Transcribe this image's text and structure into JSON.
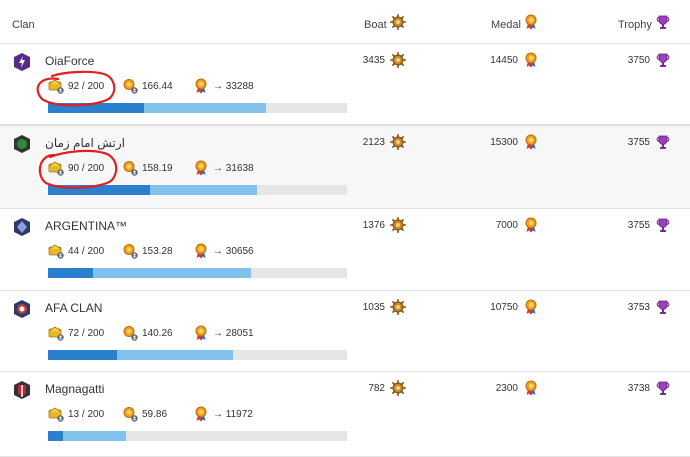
{
  "header": {
    "clan_label": "Clan",
    "boat_label": "Boat",
    "medal_label": "Medal",
    "trophy_label": "Trophy"
  },
  "rows": [
    {
      "name": "OiaForce",
      "members": "92 / 200",
      "avg": "166.44",
      "total": "→ 33288",
      "boat": "3435",
      "medal": "14450",
      "trophy": "3750",
      "bar": [
        0.32,
        0.73
      ],
      "badge_color": "#5b2a86"
    },
    {
      "name": "ارتش امام زمان",
      "members": "90 / 200",
      "avg": "158.19",
      "total": "→ 31638",
      "boat": "2123",
      "medal": "15300",
      "trophy": "3755",
      "bar": [
        0.34,
        0.7
      ],
      "badge_color": "#2e8b3a"
    },
    {
      "name": "ARGENTINA™",
      "members": "44 / 200",
      "avg": "153.28",
      "total": "→ 30656",
      "boat": "1376",
      "medal": "7000",
      "trophy": "3755",
      "bar": [
        0.15,
        0.68
      ],
      "badge_color": "#2b3a67"
    },
    {
      "name": "AFA CLAN",
      "members": "72 / 200",
      "avg": "140.26",
      "total": "→ 28051",
      "boat": "1035",
      "medal": "10750",
      "trophy": "3753",
      "bar": [
        0.23,
        0.62
      ],
      "badge_color": "#c23b3b"
    },
    {
      "name": "Magnagatti",
      "members": "13 / 200",
      "avg": "59.86",
      "total": "→ 11972",
      "boat": "782",
      "medal": "2300",
      "trophy": "3738",
      "bar": [
        0.05,
        0.26
      ],
      "badge_color": "#b8283a"
    }
  ],
  "colors": {
    "bar_dark": "#2a80cc",
    "bar_light": "#82c1ec",
    "bar_bg": "#e6e6e6",
    "annotation": "#e02020"
  }
}
